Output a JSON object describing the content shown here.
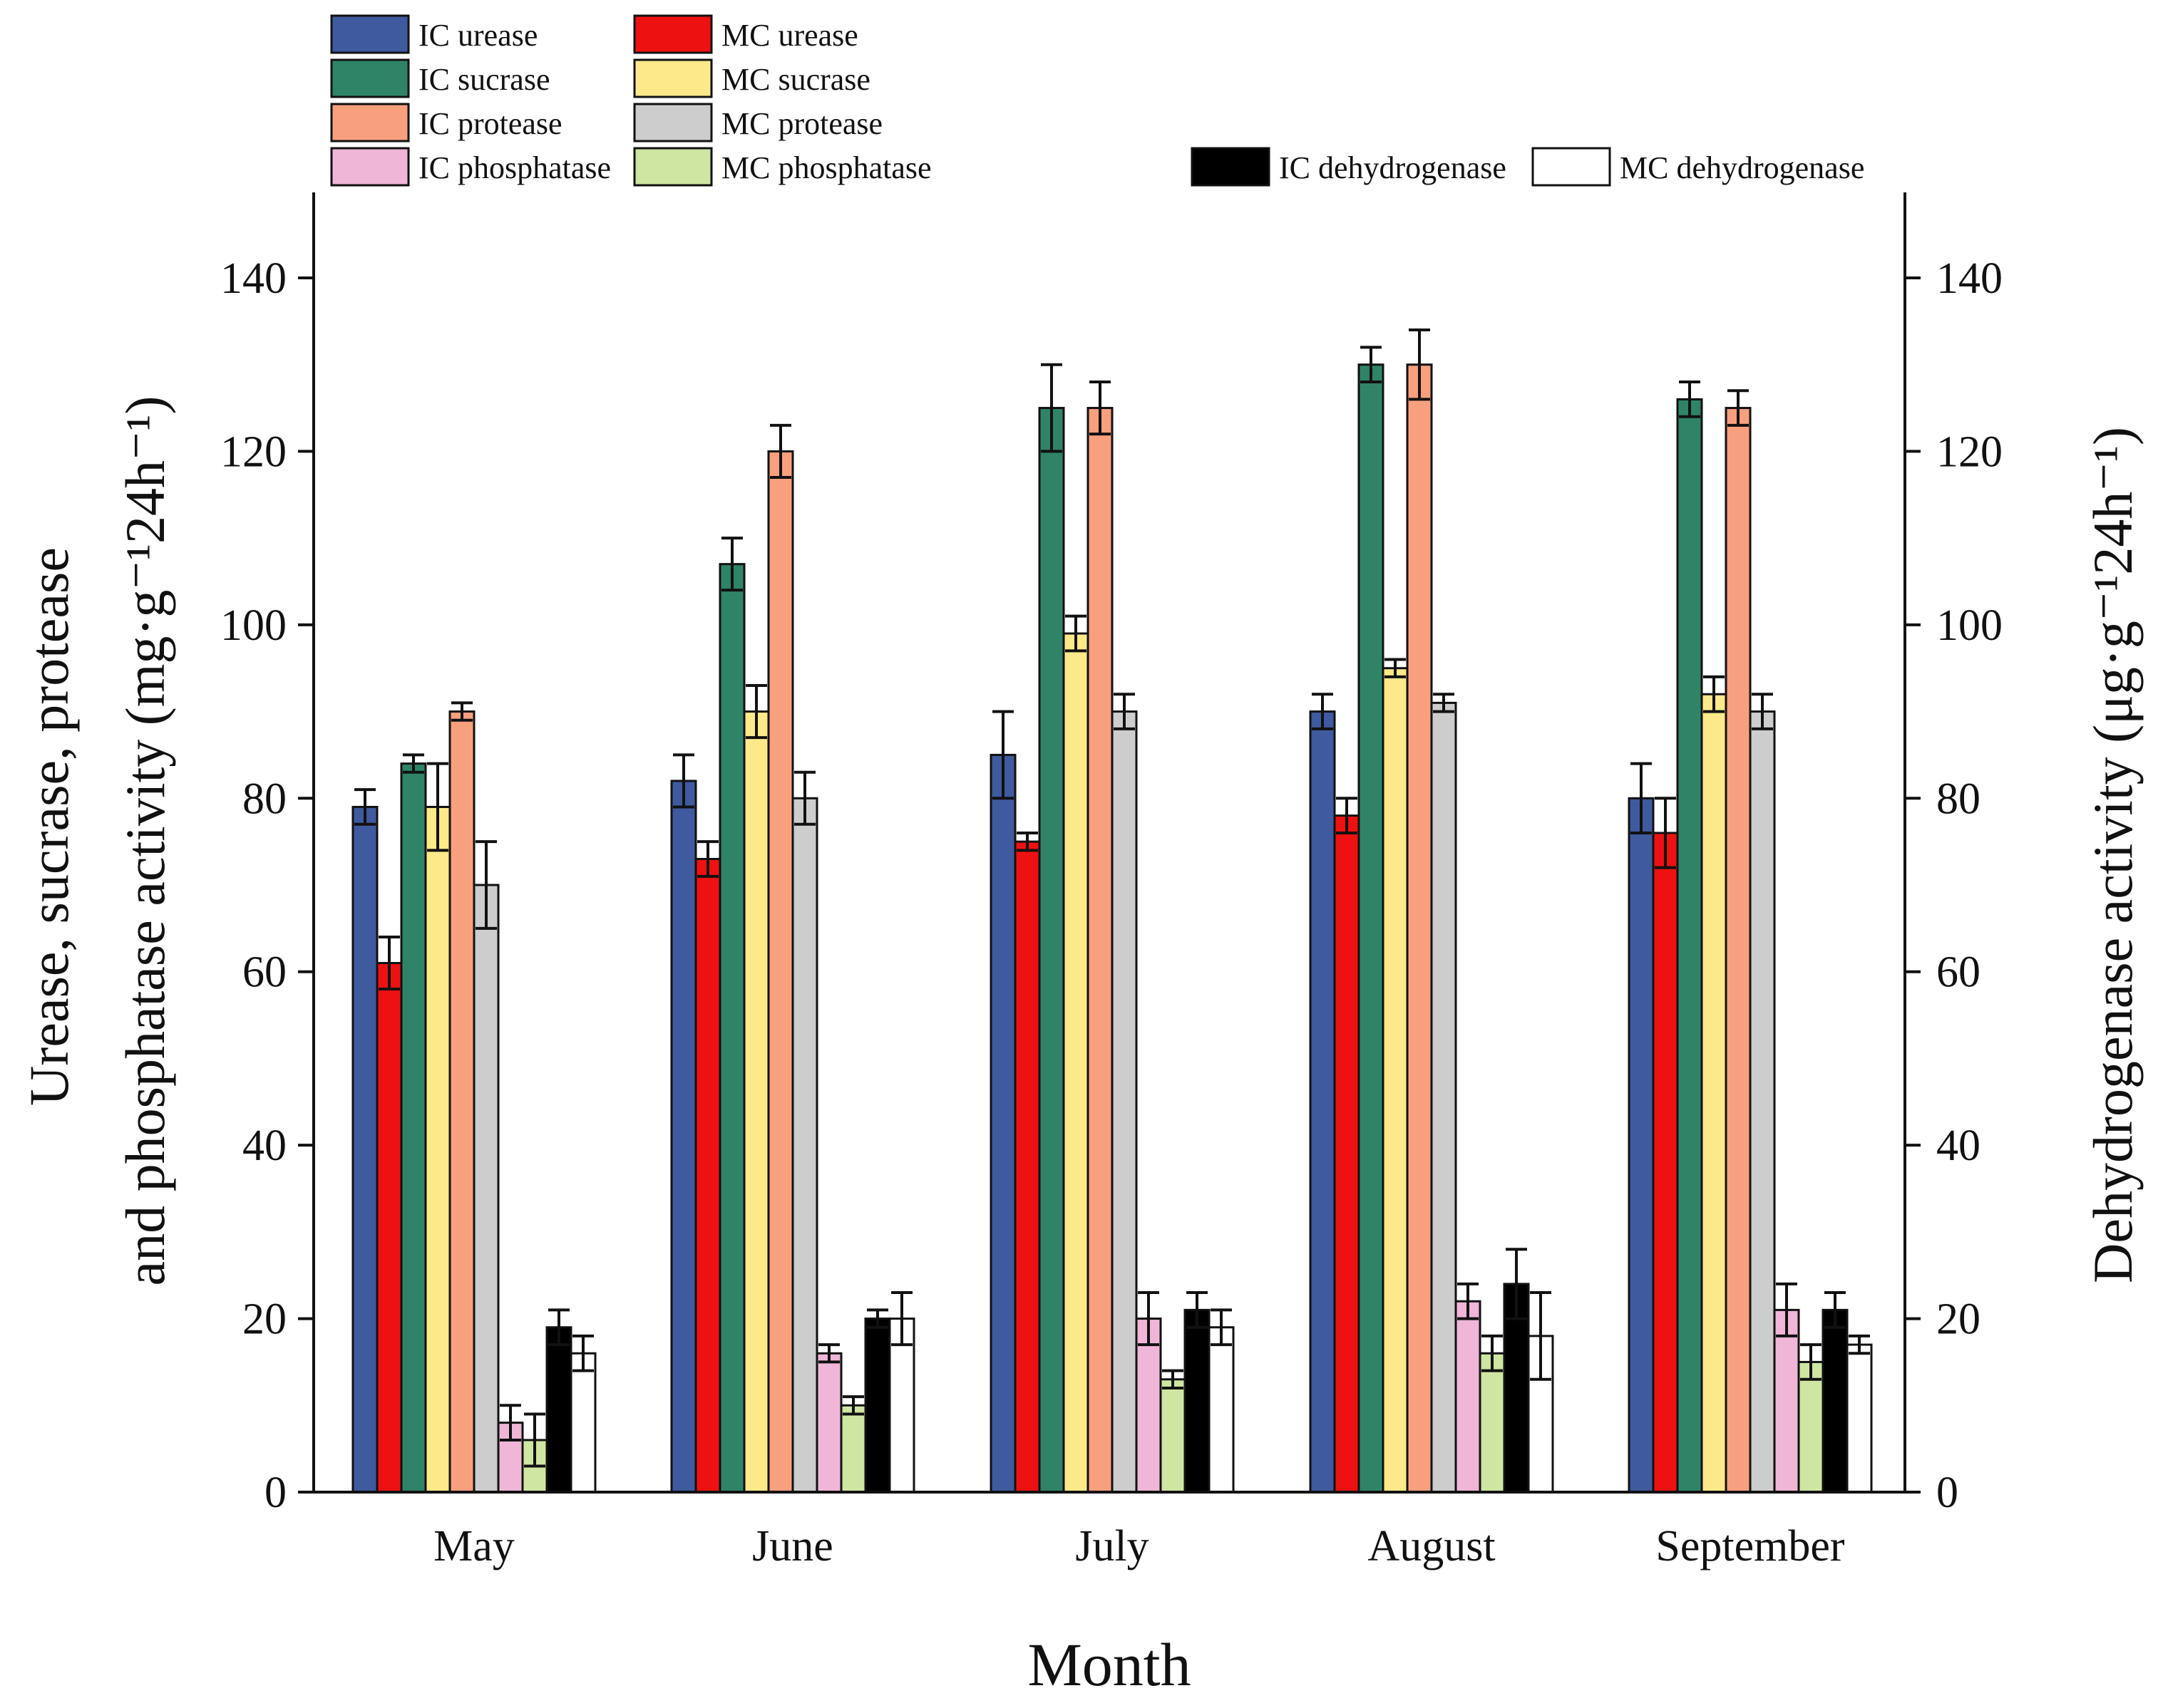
{
  "chart_data": {
    "type": "bar",
    "title": "",
    "xlabel": "Month",
    "ylabel_left": "Urease, sucrase, protease and phosphatase activity (mg·g⁻¹24h⁻¹)",
    "ylabel_left_line1": "Urease, sucrase, protease",
    "ylabel_left_line2": "and phosphatase activity (mg·g⁻¹24h⁻¹)",
    "ylabel_right": "Dehydrogenase activity (μg·g⁻¹24h⁻¹)",
    "ylim": [
      0,
      140
    ],
    "y2lim": [
      0,
      140
    ],
    "yticks": [
      0,
      20,
      40,
      60,
      80,
      100,
      120,
      140
    ],
    "y2ticks": [
      0,
      20,
      40,
      60,
      80,
      100,
      120,
      140
    ],
    "categories": [
      "May",
      "June",
      "July",
      "August",
      "September"
    ],
    "legend_position": "top",
    "series": [
      {
        "name": "IC urease",
        "color": "#3f5a9e",
        "axis": "left",
        "values": [
          79,
          82,
          85,
          90,
          80
        ],
        "errors": [
          2,
          3,
          5,
          2,
          4
        ]
      },
      {
        "name": "MC urease",
        "color": "#ee1111",
        "axis": "left",
        "values": [
          61,
          73,
          75,
          78,
          76
        ],
        "errors": [
          3,
          2,
          1,
          2,
          4
        ]
      },
      {
        "name": "IC sucrase",
        "color": "#2f8468",
        "axis": "left",
        "values": [
          84,
          107,
          125,
          130,
          126
        ],
        "errors": [
          1,
          3,
          5,
          2,
          2
        ]
      },
      {
        "name": "MC sucrase",
        "color": "#fde98a",
        "axis": "left",
        "values": [
          79,
          90,
          99,
          95,
          92
        ],
        "errors": [
          5,
          3,
          2,
          1,
          2
        ]
      },
      {
        "name": "IC protease",
        "color": "#f8a07e",
        "axis": "left",
        "values": [
          90,
          120,
          125,
          130,
          125
        ],
        "errors": [
          1,
          3,
          3,
          4,
          2
        ]
      },
      {
        "name": "MC protease",
        "color": "#cdcdcd",
        "axis": "left",
        "values": [
          70,
          80,
          90,
          91,
          90
        ],
        "errors": [
          5,
          3,
          2,
          1,
          2
        ]
      },
      {
        "name": "IC phosphatase",
        "color": "#f0b6d8",
        "axis": "left",
        "values": [
          8,
          16,
          20,
          22,
          21
        ],
        "errors": [
          2,
          1,
          3,
          2,
          3
        ]
      },
      {
        "name": "MC phosphatase",
        "color": "#cfe6a2",
        "axis": "left",
        "values": [
          6,
          10,
          13,
          16,
          15
        ],
        "errors": [
          3,
          1,
          1,
          2,
          2
        ]
      },
      {
        "name": "IC dehydrogenase",
        "color": "#000000",
        "axis": "right",
        "values": [
          19,
          20,
          21,
          24,
          21
        ],
        "errors": [
          2,
          1,
          2,
          4,
          2
        ]
      },
      {
        "name": "MC dehydrogenase",
        "color": "#ffffff",
        "axis": "right",
        "values": [
          16,
          20,
          19,
          18,
          17
        ],
        "errors": [
          2,
          3,
          2,
          5,
          1
        ]
      }
    ]
  }
}
